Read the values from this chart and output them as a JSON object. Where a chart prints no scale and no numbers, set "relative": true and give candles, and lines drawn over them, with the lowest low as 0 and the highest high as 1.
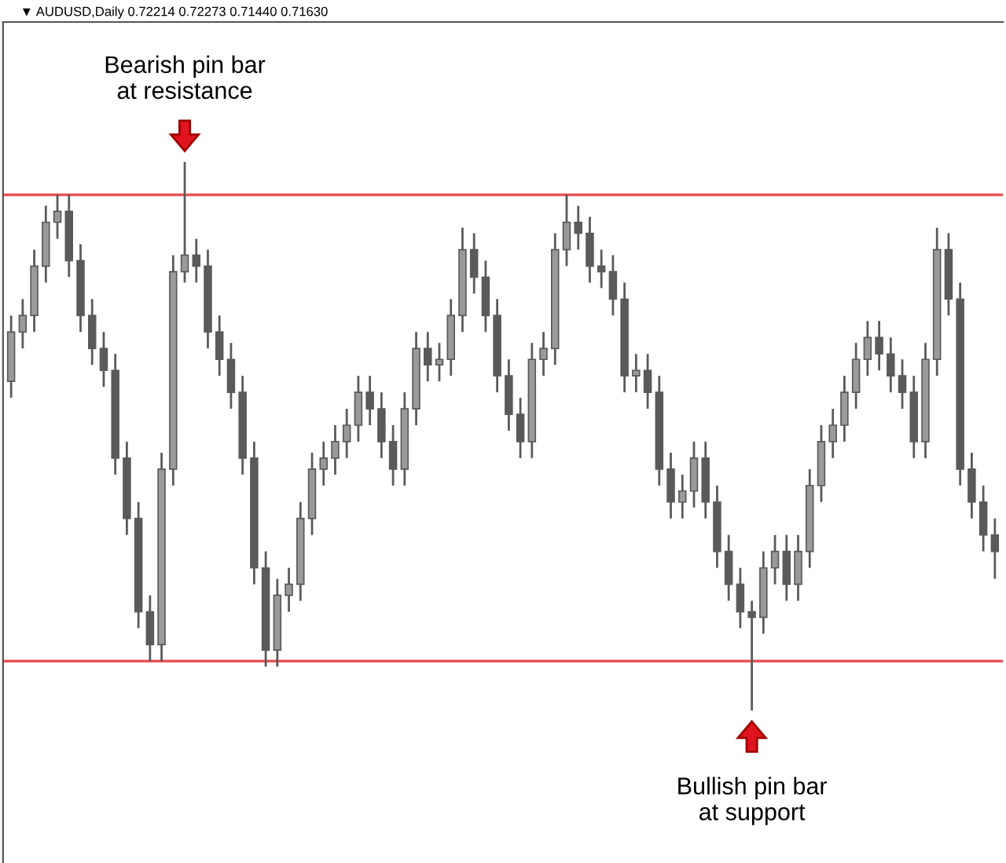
{
  "chart_data": {
    "type": "candlestick",
    "relative": true,
    "title": "▼ AUDUSD,Daily 0.72214 0.72273 0.71440 0.71630",
    "annotations": [
      "Bearish pin bar\nat resistance",
      "Bullish pin bar\nat support"
    ],
    "categories": [
      null,
      null,
      null,
      null,
      null,
      null,
      null,
      null,
      null,
      null,
      null,
      null,
      null,
      null,
      null,
      null,
      null,
      null,
      null,
      null,
      null,
      null,
      null,
      null,
      null,
      null,
      null,
      null,
      null,
      null,
      null,
      null,
      null,
      null,
      null,
      null,
      null,
      null,
      null,
      null,
      null,
      null,
      null,
      null,
      null,
      null,
      null,
      null,
      null,
      null,
      null,
      null,
      null,
      null,
      null,
      null,
      null,
      null,
      null,
      null,
      null,
      null,
      null,
      null,
      null,
      null,
      null,
      null,
      null,
      null,
      null,
      null,
      null,
      null,
      null,
      null,
      null,
      null,
      null,
      null,
      null,
      null,
      null,
      null,
      null,
      null
    ],
    "color": "#5a5a5a",
    "grid": false,
    "ref_lines": [
      {
        "axis": "y",
        "value": 0.94,
        "color": "#e8494f"
      },
      {
        "axis": "y",
        "value": 0.09,
        "color": "#e8494f"
      }
    ],
    "ohlc": [
      [
        0.6,
        0.72,
        0.57,
        0.69
      ],
      [
        0.69,
        0.75,
        0.66,
        0.72
      ],
      [
        0.72,
        0.84,
        0.69,
        0.81
      ],
      [
        0.81,
        0.92,
        0.78,
        0.89
      ],
      [
        0.89,
        0.94,
        0.86,
        0.91
      ],
      [
        0.91,
        0.94,
        0.79,
        0.82
      ],
      [
        0.82,
        0.85,
        0.69,
        0.72
      ],
      [
        0.72,
        0.75,
        0.63,
        0.66
      ],
      [
        0.66,
        0.69,
        0.59,
        0.62
      ],
      [
        0.62,
        0.65,
        0.43,
        0.46
      ],
      [
        0.46,
        0.49,
        0.32,
        0.35
      ],
      [
        0.35,
        0.38,
        0.15,
        0.18
      ],
      [
        0.18,
        0.21,
        0.09,
        0.12
      ],
      [
        0.12,
        0.47,
        0.09,
        0.44
      ],
      [
        0.44,
        0.83,
        0.41,
        0.8
      ],
      [
        0.8,
        1.0,
        0.78,
        0.83
      ],
      [
        0.83,
        0.86,
        0.78,
        0.81
      ],
      [
        0.81,
        0.84,
        0.66,
        0.69
      ],
      [
        0.69,
        0.72,
        0.61,
        0.64
      ],
      [
        0.64,
        0.67,
        0.55,
        0.58
      ],
      [
        0.58,
        0.61,
        0.43,
        0.46
      ],
      [
        0.46,
        0.49,
        0.23,
        0.26
      ],
      [
        0.26,
        0.29,
        0.08,
        0.11
      ],
      [
        0.11,
        0.24,
        0.08,
        0.21
      ],
      [
        0.21,
        0.26,
        0.18,
        0.23
      ],
      [
        0.23,
        0.38,
        0.2,
        0.35
      ],
      [
        0.35,
        0.47,
        0.32,
        0.44
      ],
      [
        0.44,
        0.49,
        0.41,
        0.46
      ],
      [
        0.46,
        0.52,
        0.43,
        0.49
      ],
      [
        0.49,
        0.55,
        0.46,
        0.52
      ],
      [
        0.52,
        0.61,
        0.49,
        0.58
      ],
      [
        0.58,
        0.61,
        0.52,
        0.55
      ],
      [
        0.55,
        0.58,
        0.46,
        0.49
      ],
      [
        0.49,
        0.52,
        0.41,
        0.44
      ],
      [
        0.44,
        0.58,
        0.41,
        0.55
      ],
      [
        0.55,
        0.69,
        0.52,
        0.66
      ],
      [
        0.66,
        0.69,
        0.6,
        0.63
      ],
      [
        0.63,
        0.67,
        0.6,
        0.64
      ],
      [
        0.64,
        0.75,
        0.61,
        0.72
      ],
      [
        0.72,
        0.88,
        0.69,
        0.84
      ],
      [
        0.84,
        0.87,
        0.76,
        0.79
      ],
      [
        0.79,
        0.82,
        0.69,
        0.72
      ],
      [
        0.72,
        0.75,
        0.58,
        0.61
      ],
      [
        0.61,
        0.64,
        0.51,
        0.54
      ],
      [
        0.54,
        0.57,
        0.46,
        0.49
      ],
      [
        0.49,
        0.67,
        0.46,
        0.64
      ],
      [
        0.64,
        0.69,
        0.61,
        0.66
      ],
      [
        0.66,
        0.87,
        0.63,
        0.84
      ],
      [
        0.84,
        0.94,
        0.81,
        0.89
      ],
      [
        0.89,
        0.92,
        0.84,
        0.87
      ],
      [
        0.87,
        0.9,
        0.78,
        0.81
      ],
      [
        0.81,
        0.84,
        0.77,
        0.8
      ],
      [
        0.8,
        0.83,
        0.72,
        0.75
      ],
      [
        0.75,
        0.78,
        0.58,
        0.61
      ],
      [
        0.61,
        0.65,
        0.58,
        0.62
      ],
      [
        0.62,
        0.65,
        0.55,
        0.58
      ],
      [
        0.58,
        0.61,
        0.41,
        0.44
      ],
      [
        0.44,
        0.47,
        0.35,
        0.38
      ],
      [
        0.38,
        0.43,
        0.35,
        0.4
      ],
      [
        0.4,
        0.49,
        0.37,
        0.46
      ],
      [
        0.46,
        0.49,
        0.35,
        0.38
      ],
      [
        0.38,
        0.41,
        0.26,
        0.29
      ],
      [
        0.29,
        0.32,
        0.2,
        0.23
      ],
      [
        0.23,
        0.26,
        0.15,
        0.18
      ],
      [
        0.18,
        0.2,
        0.0,
        0.17
      ],
      [
        0.17,
        0.29,
        0.14,
        0.26
      ],
      [
        0.26,
        0.32,
        0.23,
        0.29
      ],
      [
        0.29,
        0.32,
        0.2,
        0.23
      ],
      [
        0.23,
        0.32,
        0.2,
        0.29
      ],
      [
        0.29,
        0.44,
        0.26,
        0.41
      ],
      [
        0.41,
        0.52,
        0.38,
        0.49
      ],
      [
        0.49,
        0.55,
        0.46,
        0.52
      ],
      [
        0.52,
        0.61,
        0.49,
        0.58
      ],
      [
        0.58,
        0.67,
        0.55,
        0.64
      ],
      [
        0.64,
        0.71,
        0.61,
        0.68
      ],
      [
        0.68,
        0.71,
        0.62,
        0.65
      ],
      [
        0.65,
        0.68,
        0.58,
        0.61
      ],
      [
        0.61,
        0.64,
        0.55,
        0.58
      ],
      [
        0.58,
        0.61,
        0.46,
        0.49
      ],
      [
        0.49,
        0.67,
        0.46,
        0.64
      ],
      [
        0.64,
        0.88,
        0.61,
        0.84
      ],
      [
        0.84,
        0.87,
        0.72,
        0.75
      ],
      [
        0.75,
        0.78,
        0.41,
        0.44
      ],
      [
        0.44,
        0.47,
        0.35,
        0.38
      ],
      [
        0.38,
        0.41,
        0.29,
        0.32
      ],
      [
        0.32,
        0.35,
        0.24,
        0.29
      ]
    ]
  }
}
